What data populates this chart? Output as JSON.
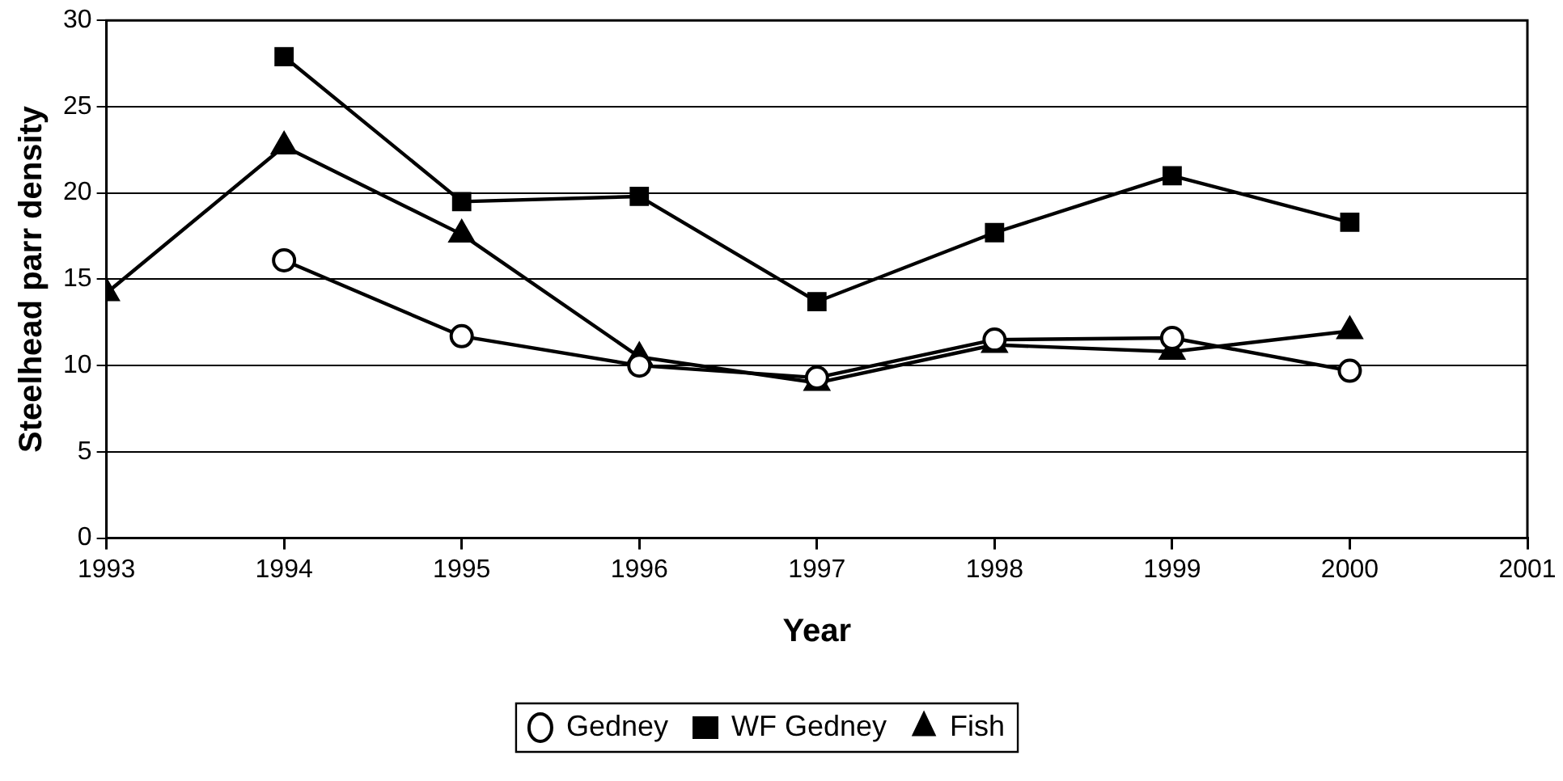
{
  "chart_data": {
    "type": "line",
    "xlabel": "Year",
    "ylabel": "Steelhead parr density",
    "x": [
      1993,
      1994,
      1995,
      1996,
      1997,
      1998,
      1999,
      2000
    ],
    "series": [
      {
        "name": "Gedney",
        "color": "#000000",
        "marker": "circle",
        "values": [
          null,
          16.1,
          11.7,
          10.0,
          9.3,
          11.5,
          11.6,
          9.7
        ]
      },
      {
        "name": "WF Gedney",
        "color": "#000000",
        "marker": "square",
        "values": [
          null,
          27.9,
          19.5,
          19.8,
          13.7,
          17.7,
          21.0,
          18.3
        ]
      },
      {
        "name": "Fish",
        "color": "#000000",
        "marker": "triangle",
        "values": [
          14.2,
          22.7,
          17.6,
          10.5,
          9.0,
          11.2,
          10.8,
          12.0
        ]
      }
    ],
    "xlim": [
      1993,
      2001
    ],
    "xticks": [
      1993,
      1994,
      1995,
      1996,
      1997,
      1998,
      1999,
      2000,
      2001
    ],
    "ylim": [
      0,
      30
    ],
    "yticks": [
      0,
      5,
      10,
      15,
      20,
      25,
      30
    ],
    "grid": "y",
    "legend": "bottom",
    "line_style": "solid"
  }
}
